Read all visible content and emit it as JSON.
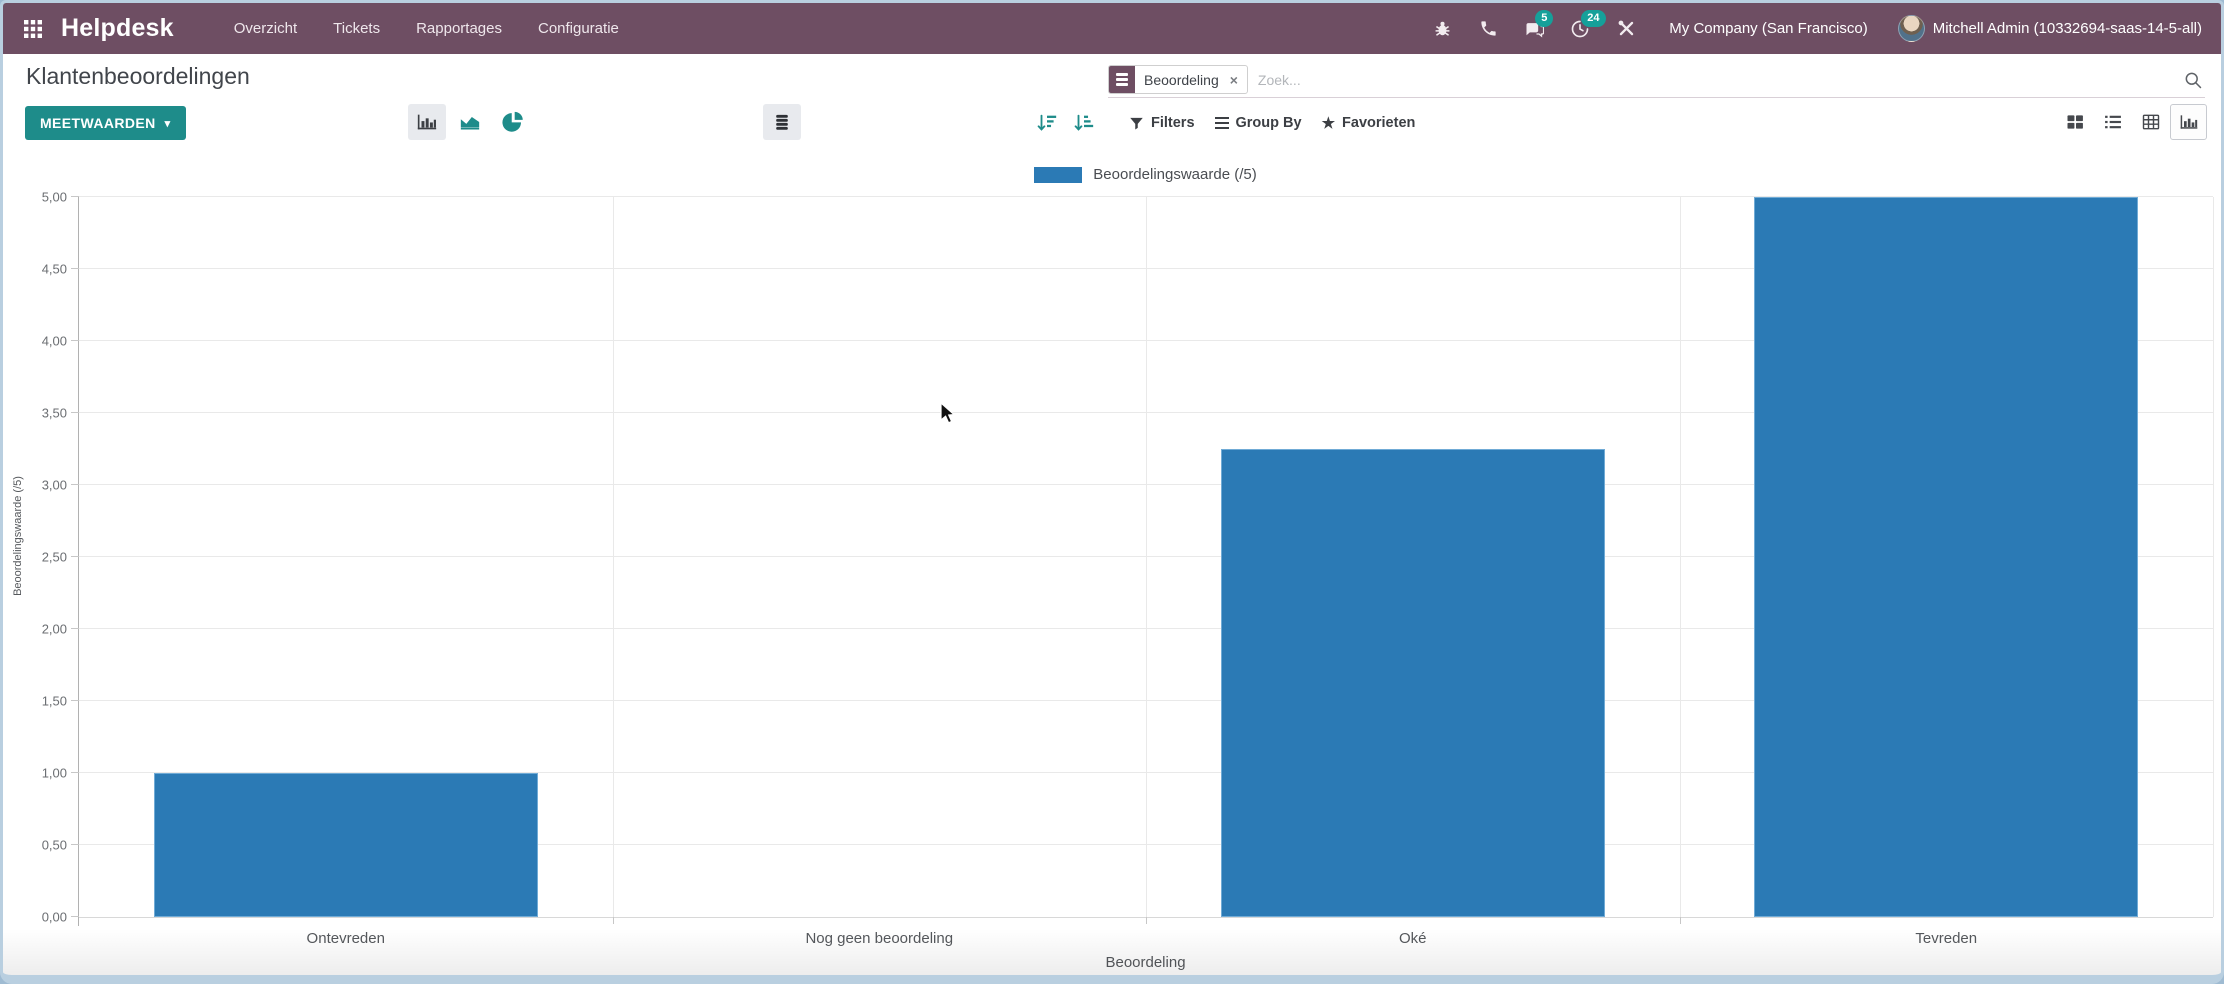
{
  "navbar": {
    "brand": "Helpdesk",
    "menu": [
      "Overzicht",
      "Tickets",
      "Rapportages",
      "Configuratie"
    ],
    "messages_badge": "5",
    "activities_badge": "24",
    "company": "My Company (San Francisco)",
    "user": "Mitchell Admin (10332694-saas-14-5-all)"
  },
  "control_panel": {
    "title": "Klantenbeoordelingen",
    "measures_button": "MEETWAARDEN",
    "caret_glyph": "▾",
    "search": {
      "facet_label": "Beoordeling",
      "remove_glyph": "×",
      "placeholder": "Zoek..."
    },
    "filters_label": "Filters",
    "group_by_label": "Group By",
    "favorites_label": "Favorieten",
    "star_glyph": "★"
  },
  "colors": {
    "navbar_bg": "#6e4e63",
    "accent_teal": "#1e8c8a",
    "badge_teal": "#16a09a",
    "bar_blue": "#2b7ab5"
  },
  "chart_data": {
    "type": "bar",
    "title": "",
    "categories": [
      "Ontevreden",
      "Nog geen beoordeling",
      "Oké",
      "Tevreden"
    ],
    "values": [
      1.0,
      0,
      3.25,
      5.0
    ],
    "series": [
      {
        "name": "Beoordelingswaarde (/5)",
        "values": [
          1.0,
          0,
          3.25,
          5.0
        ]
      }
    ],
    "legend_position": "top",
    "xlabel": "Beoordeling",
    "ylabel": "Beoordelingswaarde (/5)",
    "ylim": [
      0,
      5
    ],
    "ytick_step": 0.5,
    "ytick_labels": [
      "0,00",
      "0,50",
      "1,00",
      "1,50",
      "2,00",
      "2,50",
      "3,00",
      "3,50",
      "4,00",
      "4,50",
      "5,00"
    ],
    "grid": true,
    "bar_color": "#2b7ab5",
    "bar_width_ratio": 0.72
  }
}
